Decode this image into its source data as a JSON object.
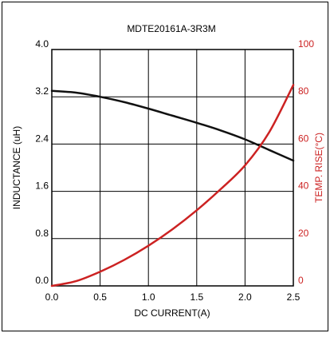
{
  "chart_data": {
    "type": "line",
    "title": "MDTE20161A-3R3M",
    "xlabel": "DC CURRENT(A)",
    "ylabel_left": "INDUCTANCE (uH)",
    "ylabel_right": "TEMP. RISE(°C)",
    "xlim": [
      0,
      2.5
    ],
    "ylim_left": [
      0,
      4.0
    ],
    "ylim_right": [
      0,
      100
    ],
    "x_ticks": [
      "0.0",
      "0.5",
      "1.0",
      "1.5",
      "2.0",
      "2.5"
    ],
    "y_left_ticks": [
      "0.0",
      "0.8",
      "1.6",
      "2.4",
      "3.2",
      "4.0"
    ],
    "y_right_ticks": [
      "0",
      "20",
      "40",
      "60",
      "80",
      "100"
    ],
    "grid": true,
    "colors": {
      "left_axis": "#000000",
      "right_axis": "#cc2222",
      "grid": "#000000"
    },
    "series": [
      {
        "axis": "left",
        "color": "#111111",
        "x": [
          0,
          0.25,
          0.5,
          0.75,
          1.0,
          1.25,
          1.5,
          1.75,
          2.0,
          2.25,
          2.5
        ],
        "values": [
          3.3,
          3.27,
          3.2,
          3.11,
          3.0,
          2.88,
          2.76,
          2.63,
          2.48,
          2.3,
          2.12
        ]
      },
      {
        "axis": "right",
        "color": "#cc2222",
        "x": [
          0,
          0.25,
          0.5,
          0.75,
          1.0,
          1.25,
          1.5,
          1.75,
          2.0,
          2.25,
          2.5
        ],
        "values": [
          0,
          2,
          6,
          11,
          17,
          24,
          32,
          41,
          51,
          65,
          85
        ]
      }
    ]
  }
}
